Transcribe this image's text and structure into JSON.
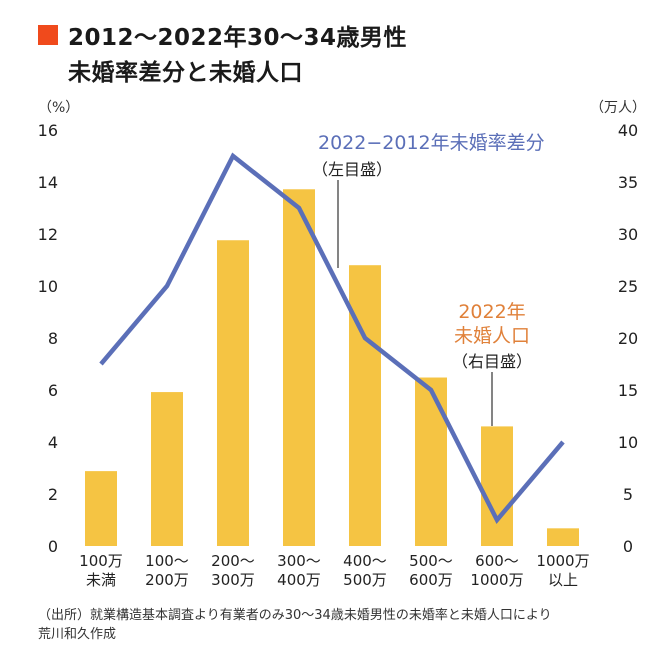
{
  "title": {
    "line1": "2012～2022年30～34歳男性",
    "line2": "未婚率差分と未婚人口"
  },
  "colors": {
    "title_square": "#f04a1c",
    "bar": "#f5c443",
    "line": "#5b6fb8",
    "annotation_line_label": "#5b6fb8",
    "annotation_bar_label": "#e0813a",
    "axis": "#555555"
  },
  "chart_data": {
    "type": "bar+line",
    "categories": [
      [
        "100万",
        "未満"
      ],
      [
        "100～",
        "200万"
      ],
      [
        "200～",
        "300万"
      ],
      [
        "300～",
        "400万"
      ],
      [
        "400～",
        "500万"
      ],
      [
        "500～",
        "600万"
      ],
      [
        "600～",
        "1000万"
      ],
      [
        "1000万",
        "以上"
      ]
    ],
    "series": [
      {
        "name": "2022年 未婚人口",
        "type": "bar",
        "axis": "right",
        "values": [
          7.2,
          14.8,
          29.4,
          34.3,
          27.0,
          16.2,
          11.5,
          1.7
        ]
      },
      {
        "name": "2022−2012年 未婚率差分",
        "type": "line",
        "axis": "left",
        "values": [
          7.0,
          10.0,
          15.0,
          13.0,
          8.0,
          6.0,
          1.0,
          4.0
        ]
      }
    ],
    "left_axis": {
      "unit": "（%）",
      "range": [
        0,
        16
      ],
      "ticks": [
        "0",
        "2",
        "4",
        "6",
        "8",
        "10",
        "12",
        "14",
        "16"
      ]
    },
    "right_axis": {
      "unit": "（万人）",
      "range": [
        0,
        40
      ],
      "ticks": [
        "0",
        "5",
        "10",
        "15",
        "20",
        "25",
        "30",
        "35",
        "40"
      ]
    },
    "annotations": {
      "line_label": "2022−2012年未婚率差分",
      "line_axis_note": "（左目盛）",
      "bar_label_1": "2022年",
      "bar_label_2": "未婚人口",
      "bar_axis_note": "（右目盛）"
    }
  },
  "source": {
    "line1": "（出所）就業構造基本調査より有業者のみ30～34歳未婚男性の未婚率と未婚人口により",
    "line2": "荒川和久作成"
  }
}
